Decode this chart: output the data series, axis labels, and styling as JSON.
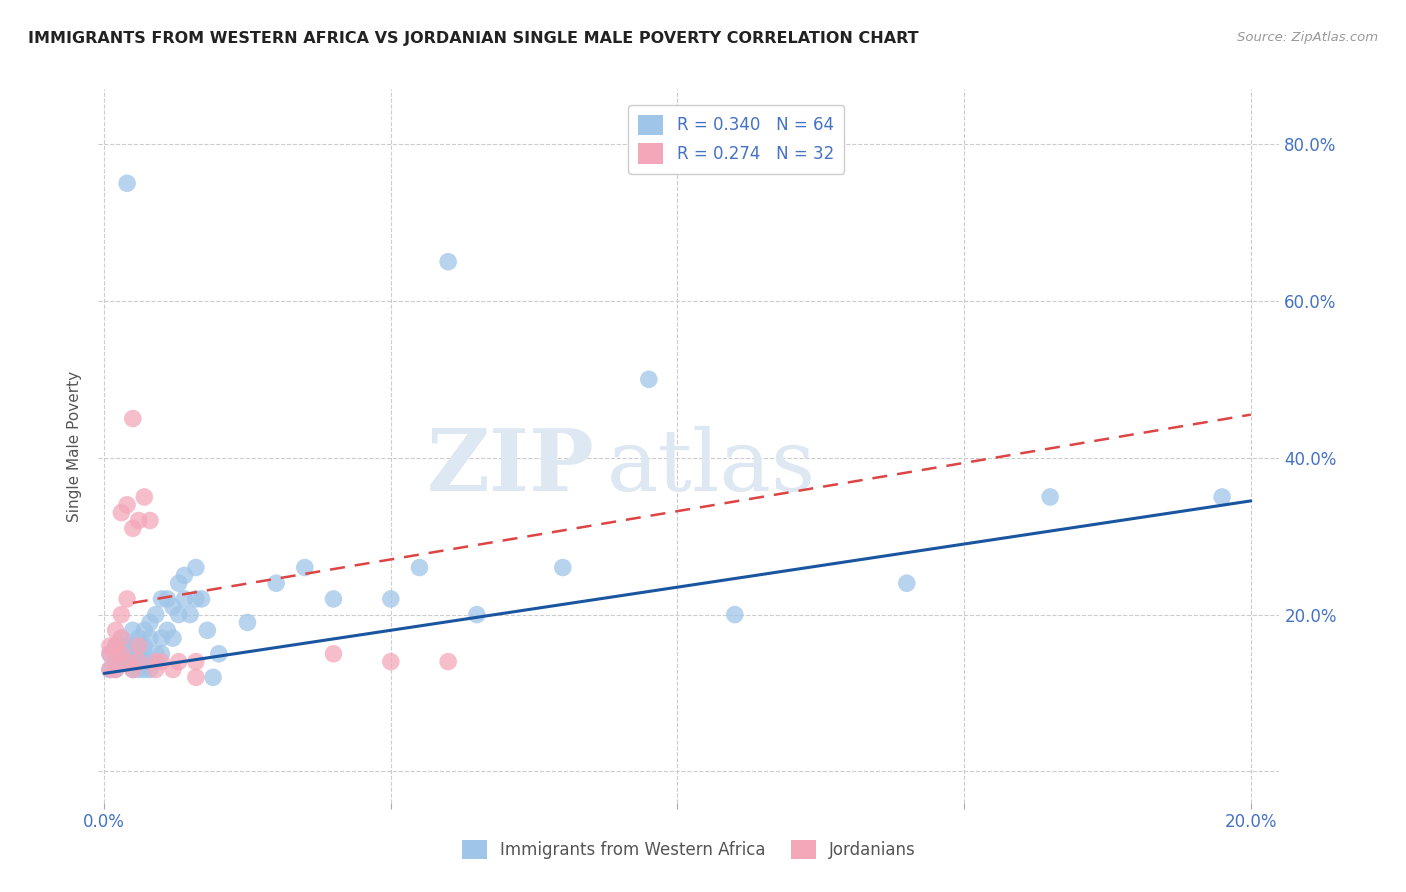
{
  "title": "IMMIGRANTS FROM WESTERN AFRICA VS JORDANIAN SINGLE MALE POVERTY CORRELATION CHART",
  "source": "Source: ZipAtlas.com",
  "ylabel": "Single Male Poverty",
  "xlim": [
    -0.001,
    0.205
  ],
  "ylim": [
    -0.04,
    0.87
  ],
  "ytick_vals": [
    0.0,
    0.2,
    0.4,
    0.6,
    0.8
  ],
  "ytick_labels": [
    "",
    "20.0%",
    "40.0%",
    "60.0%",
    "80.0%"
  ],
  "xtick_vals": [
    0.0,
    0.05,
    0.1,
    0.15,
    0.2
  ],
  "xtick_labels": [
    "0.0%",
    "",
    "",
    "",
    "20.0%"
  ],
  "r1": 0.34,
  "n1": 64,
  "r2": 0.274,
  "n2": 32,
  "color1": "#9fc5e8",
  "color2": "#f4a7b9",
  "line1_color": "#1a56a0",
  "line2_color": "#d44",
  "watermark_color": "#dde8f3",
  "blue_x": [
    0.001,
    0.001,
    0.002,
    0.002,
    0.002,
    0.003,
    0.003,
    0.003,
    0.003,
    0.004,
    0.004,
    0.004,
    0.004,
    0.005,
    0.005,
    0.005,
    0.005,
    0.006,
    0.006,
    0.006,
    0.006,
    0.007,
    0.007,
    0.007,
    0.007,
    0.007,
    0.008,
    0.008,
    0.008,
    0.008,
    0.009,
    0.009,
    0.01,
    0.01,
    0.01,
    0.011,
    0.011,
    0.012,
    0.012,
    0.013,
    0.013,
    0.014,
    0.014,
    0.015,
    0.016,
    0.016,
    0.017,
    0.018,
    0.019,
    0.02,
    0.025,
    0.03,
    0.035,
    0.04,
    0.05,
    0.055,
    0.06,
    0.065,
    0.08,
    0.095,
    0.11,
    0.14,
    0.165,
    0.195
  ],
  "blue_y": [
    0.13,
    0.15,
    0.14,
    0.16,
    0.13,
    0.14,
    0.16,
    0.17,
    0.14,
    0.15,
    0.14,
    0.16,
    0.75,
    0.13,
    0.16,
    0.18,
    0.14,
    0.15,
    0.17,
    0.13,
    0.16,
    0.14,
    0.13,
    0.16,
    0.15,
    0.18,
    0.14,
    0.17,
    0.13,
    0.19,
    0.15,
    0.2,
    0.17,
    0.15,
    0.22,
    0.18,
    0.22,
    0.17,
    0.21,
    0.2,
    0.24,
    0.22,
    0.25,
    0.2,
    0.22,
    0.26,
    0.22,
    0.18,
    0.12,
    0.15,
    0.19,
    0.24,
    0.26,
    0.22,
    0.22,
    0.26,
    0.65,
    0.2,
    0.26,
    0.5,
    0.2,
    0.24,
    0.35,
    0.35
  ],
  "pink_x": [
    0.001,
    0.001,
    0.001,
    0.002,
    0.002,
    0.002,
    0.002,
    0.003,
    0.003,
    0.003,
    0.003,
    0.004,
    0.004,
    0.004,
    0.005,
    0.005,
    0.005,
    0.006,
    0.006,
    0.006,
    0.007,
    0.008,
    0.009,
    0.009,
    0.01,
    0.012,
    0.013,
    0.016,
    0.016,
    0.04,
    0.05,
    0.06
  ],
  "pink_y": [
    0.15,
    0.16,
    0.13,
    0.18,
    0.16,
    0.15,
    0.13,
    0.2,
    0.17,
    0.15,
    0.33,
    0.34,
    0.22,
    0.14,
    0.13,
    0.31,
    0.45,
    0.14,
    0.32,
    0.16,
    0.35,
    0.32,
    0.14,
    0.13,
    0.14,
    0.13,
    0.14,
    0.14,
    0.12,
    0.15,
    0.14,
    0.14
  ],
  "line1_x0": 0.0,
  "line1_y0": 0.125,
  "line1_x1": 0.2,
  "line1_y1": 0.345,
  "line2_x0": 0.005,
  "line2_y0": 0.215,
  "line2_x1": 0.2,
  "line2_y1": 0.455
}
